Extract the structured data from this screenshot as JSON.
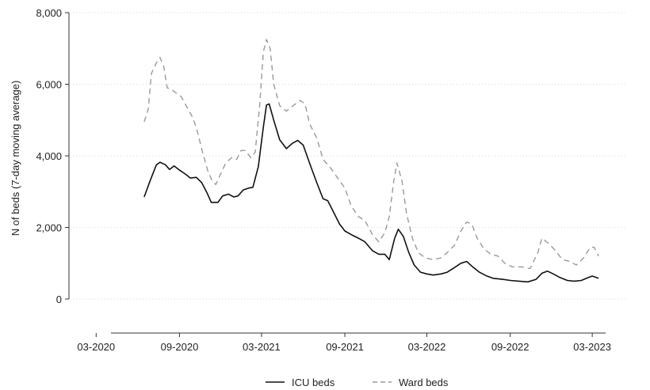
{
  "chart_data": {
    "type": "line",
    "title": "",
    "xlabel": "",
    "ylabel": "N of beds (7-day moving average)",
    "ylim": [
      0,
      8000
    ],
    "xlim": [
      "2020-01-01",
      "2023-05-15"
    ],
    "grid": true,
    "legend_position": "bottom",
    "yticks": [
      {
        "value": 0,
        "label": "0"
      },
      {
        "value": 2000,
        "label": "2,000"
      },
      {
        "value": 4000,
        "label": "4,000"
      },
      {
        "value": 6000,
        "label": "6,000"
      },
      {
        "value": 8000,
        "label": "8,000"
      }
    ],
    "xticks": [
      {
        "value": "2020-03-01",
        "label": "03-2020"
      },
      {
        "value": "2020-09-01",
        "label": "09-2020"
      },
      {
        "value": "2021-03-01",
        "label": "03-2021"
      },
      {
        "value": "2021-09-01",
        "label": "09-2021"
      },
      {
        "value": "2022-03-01",
        "label": "03-2022"
      },
      {
        "value": "2022-09-01",
        "label": "09-2022"
      },
      {
        "value": "2023-03-01",
        "label": "03-2023"
      }
    ],
    "series": [
      {
        "name": "ICU beds",
        "color": "#111111",
        "dash": "solid",
        "points": [
          [
            "2020-06-15",
            2850
          ],
          [
            "2020-06-28",
            3300
          ],
          [
            "2020-07-12",
            3750
          ],
          [
            "2020-07-20",
            3820
          ],
          [
            "2020-08-01",
            3750
          ],
          [
            "2020-08-10",
            3620
          ],
          [
            "2020-08-20",
            3720
          ],
          [
            "2020-09-01",
            3600
          ],
          [
            "2020-09-15",
            3480
          ],
          [
            "2020-09-25",
            3380
          ],
          [
            "2020-10-08",
            3400
          ],
          [
            "2020-10-20",
            3250
          ],
          [
            "2020-11-01",
            2960
          ],
          [
            "2020-11-10",
            2700
          ],
          [
            "2020-11-25",
            2700
          ],
          [
            "2020-12-05",
            2880
          ],
          [
            "2020-12-18",
            2930
          ],
          [
            "2020-12-30",
            2850
          ],
          [
            "2021-01-08",
            2880
          ],
          [
            "2021-01-20",
            3050
          ],
          [
            "2021-02-01",
            3100
          ],
          [
            "2021-02-10",
            3120
          ],
          [
            "2021-02-22",
            3700
          ],
          [
            "2021-03-05",
            4800
          ],
          [
            "2021-03-12",
            5420
          ],
          [
            "2021-03-18",
            5450
          ],
          [
            "2021-03-28",
            5000
          ],
          [
            "2021-04-10",
            4450
          ],
          [
            "2021-04-25",
            4200
          ],
          [
            "2021-05-08",
            4350
          ],
          [
            "2021-05-20",
            4430
          ],
          [
            "2021-06-01",
            4300
          ],
          [
            "2021-06-15",
            3800
          ],
          [
            "2021-07-01",
            3250
          ],
          [
            "2021-07-15",
            2800
          ],
          [
            "2021-07-25",
            2750
          ],
          [
            "2021-08-08",
            2400
          ],
          [
            "2021-08-20",
            2100
          ],
          [
            "2021-09-01",
            1900
          ],
          [
            "2021-09-15",
            1800
          ],
          [
            "2021-10-01",
            1700
          ],
          [
            "2021-10-15",
            1600
          ],
          [
            "2021-11-01",
            1350
          ],
          [
            "2021-11-15",
            1250
          ],
          [
            "2021-11-28",
            1250
          ],
          [
            "2021-12-08",
            1100
          ],
          [
            "2021-12-20",
            1700
          ],
          [
            "2021-12-28",
            1950
          ],
          [
            "2022-01-08",
            1750
          ],
          [
            "2022-01-20",
            1300
          ],
          [
            "2022-02-01",
            950
          ],
          [
            "2022-02-15",
            750
          ],
          [
            "2022-03-01",
            700
          ],
          [
            "2022-03-15",
            670
          ],
          [
            "2022-04-01",
            700
          ],
          [
            "2022-04-15",
            750
          ],
          [
            "2022-05-01",
            880
          ],
          [
            "2022-05-15",
            1000
          ],
          [
            "2022-05-28",
            1050
          ],
          [
            "2022-06-10",
            900
          ],
          [
            "2022-06-25",
            750
          ],
          [
            "2022-07-10",
            650
          ],
          [
            "2022-07-25",
            580
          ],
          [
            "2022-08-15",
            550
          ],
          [
            "2022-09-01",
            520
          ],
          [
            "2022-09-20",
            500
          ],
          [
            "2022-10-10",
            480
          ],
          [
            "2022-10-28",
            550
          ],
          [
            "2022-11-10",
            720
          ],
          [
            "2022-11-22",
            780
          ],
          [
            "2022-12-05",
            700
          ],
          [
            "2022-12-20",
            600
          ],
          [
            "2023-01-05",
            520
          ],
          [
            "2023-01-20",
            500
          ],
          [
            "2023-02-05",
            520
          ],
          [
            "2023-02-20",
            600
          ],
          [
            "2023-03-01",
            640
          ],
          [
            "2023-03-15",
            580
          ]
        ]
      },
      {
        "name": "Ward beds",
        "color": "#9a9a9a",
        "dash": "dashed",
        "points": [
          [
            "2020-06-15",
            4950
          ],
          [
            "2020-06-24",
            5300
          ],
          [
            "2020-07-01",
            6300
          ],
          [
            "2020-07-12",
            6600
          ],
          [
            "2020-07-20",
            6750
          ],
          [
            "2020-07-28",
            6500
          ],
          [
            "2020-08-05",
            5900
          ],
          [
            "2020-08-15",
            5850
          ],
          [
            "2020-08-25",
            5750
          ],
          [
            "2020-09-05",
            5650
          ],
          [
            "2020-09-20",
            5300
          ],
          [
            "2020-10-01",
            5050
          ],
          [
            "2020-10-10",
            4700
          ],
          [
            "2020-10-22",
            4100
          ],
          [
            "2020-11-02",
            3600
          ],
          [
            "2020-11-12",
            3300
          ],
          [
            "2020-11-20",
            3200
          ],
          [
            "2020-12-01",
            3500
          ],
          [
            "2020-12-12",
            3800
          ],
          [
            "2020-12-25",
            3950
          ],
          [
            "2021-01-05",
            3900
          ],
          [
            "2021-01-15",
            4150
          ],
          [
            "2021-01-25",
            4150
          ],
          [
            "2021-02-05",
            3950
          ],
          [
            "2021-02-15",
            4100
          ],
          [
            "2021-02-25",
            5400
          ],
          [
            "2021-03-05",
            6900
          ],
          [
            "2021-03-12",
            7250
          ],
          [
            "2021-03-20",
            7000
          ],
          [
            "2021-03-28",
            6000
          ],
          [
            "2021-04-10",
            5400
          ],
          [
            "2021-04-25",
            5250
          ],
          [
            "2021-05-10",
            5400
          ],
          [
            "2021-05-25",
            5550
          ],
          [
            "2021-06-05",
            5450
          ],
          [
            "2021-06-15",
            4900
          ],
          [
            "2021-07-01",
            4500
          ],
          [
            "2021-07-15",
            3900
          ],
          [
            "2021-08-01",
            3650
          ],
          [
            "2021-08-15",
            3400
          ],
          [
            "2021-09-01",
            3100
          ],
          [
            "2021-09-15",
            2600
          ],
          [
            "2021-10-01",
            2300
          ],
          [
            "2021-10-15",
            2200
          ],
          [
            "2021-11-01",
            1800
          ],
          [
            "2021-11-15",
            1600
          ],
          [
            "2021-11-28",
            1850
          ],
          [
            "2021-12-08",
            2300
          ],
          [
            "2021-12-18",
            3300
          ],
          [
            "2021-12-25",
            3800
          ],
          [
            "2022-01-05",
            3300
          ],
          [
            "2022-01-15",
            2400
          ],
          [
            "2022-01-28",
            1700
          ],
          [
            "2022-02-10",
            1300
          ],
          [
            "2022-02-25",
            1150
          ],
          [
            "2022-03-15",
            1100
          ],
          [
            "2022-04-01",
            1150
          ],
          [
            "2022-04-15",
            1300
          ],
          [
            "2022-05-01",
            1500
          ],
          [
            "2022-05-15",
            1900
          ],
          [
            "2022-05-28",
            2150
          ],
          [
            "2022-06-08",
            2100
          ],
          [
            "2022-06-20",
            1700
          ],
          [
            "2022-07-05",
            1400
          ],
          [
            "2022-07-20",
            1250
          ],
          [
            "2022-08-05",
            1200
          ],
          [
            "2022-08-20",
            1000
          ],
          [
            "2022-09-05",
            900
          ],
          [
            "2022-09-25",
            900
          ],
          [
            "2022-10-15",
            850
          ],
          [
            "2022-11-01",
            1300
          ],
          [
            "2022-11-10",
            1700
          ],
          [
            "2022-11-25",
            1550
          ],
          [
            "2022-12-10",
            1350
          ],
          [
            "2022-12-25",
            1100
          ],
          [
            "2023-01-10",
            1050
          ],
          [
            "2023-01-25",
            950
          ],
          [
            "2023-02-10",
            1150
          ],
          [
            "2023-02-25",
            1450
          ],
          [
            "2023-03-05",
            1450
          ],
          [
            "2023-03-15",
            1200
          ]
        ]
      }
    ]
  }
}
